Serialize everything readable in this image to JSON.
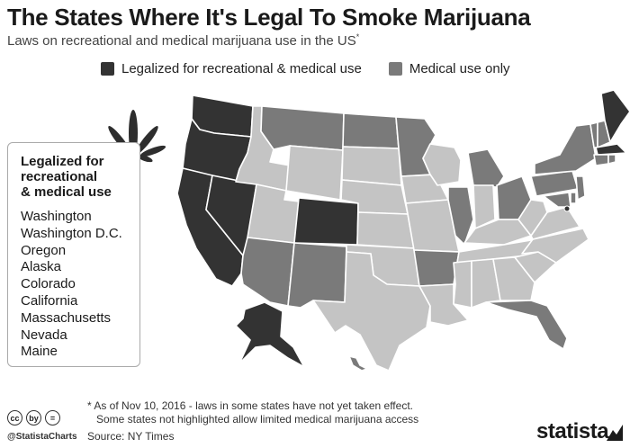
{
  "header": {
    "title": "The States Where It's Legal To Smoke Marijuana",
    "subtitle": "Laws on recreational and medical marijuana use in the US",
    "subtitle_mark": "*"
  },
  "legend": [
    {
      "label": "Legalized for recreational & medical use",
      "color": "#333333"
    },
    {
      "label": "Medical use only",
      "color": "#7a7a7a"
    }
  ],
  "colors": {
    "recreational": "#333333",
    "medical": "#7a7a7a",
    "none": "#c4c4c4",
    "border": "#ffffff"
  },
  "icons": {
    "leaf": "cannabis-leaf-icon",
    "brand": "statista-logo-icon"
  },
  "states_box": {
    "heading": "Legalized for\nrecreational\n& medical use",
    "items": [
      "Washington",
      "Washington D.C.",
      "Oregon",
      "Alaska",
      "Colorado",
      "California",
      "Massachusetts",
      "Nevada",
      "Maine"
    ]
  },
  "footnote": {
    "line1": "* As  of Nov 10, 2016 - laws in some states have not yet taken effect.",
    "line2": "Some states not highlighted allow limited medical marijuana access"
  },
  "source": "Source: NY Times",
  "handle": "@StatistaCharts",
  "license": [
    "cc",
    "by",
    "="
  ],
  "brand": "statista"
}
